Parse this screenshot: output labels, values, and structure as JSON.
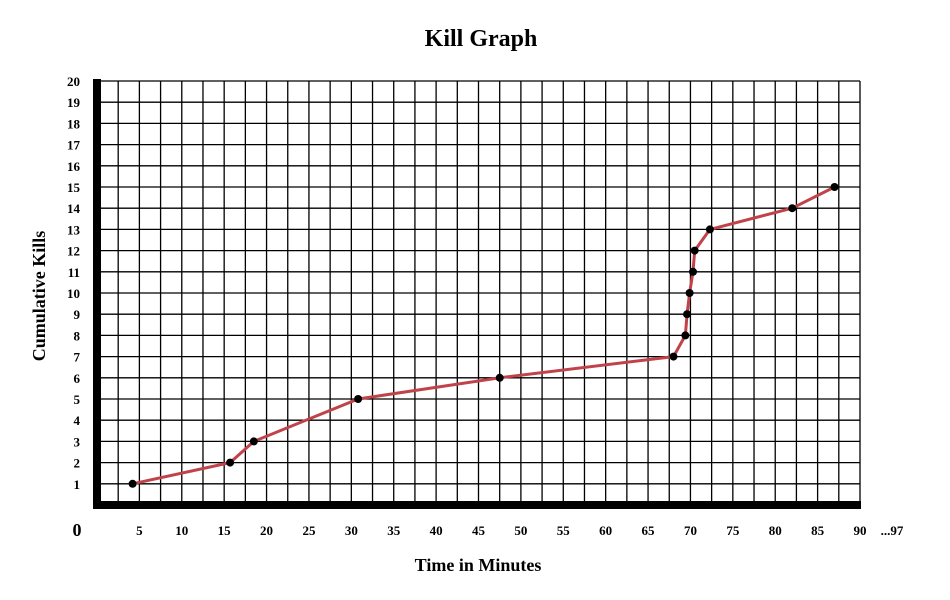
{
  "chart_data": {
    "type": "line",
    "title": "Kill Graph",
    "xlabel": "Time in Minutes",
    "ylabel": "Cumulative Kills",
    "origin_label": "0",
    "x_end_label": "...97",
    "xlim": [
      0,
      90
    ],
    "ylim": [
      0,
      20
    ],
    "x_ticks": [
      5,
      10,
      15,
      20,
      25,
      30,
      35,
      40,
      45,
      50,
      55,
      60,
      65,
      70,
      75,
      80,
      85,
      90
    ],
    "x_tick_labels": [
      "5",
      "10",
      "15",
      "20",
      "25",
      "30",
      "35",
      "40",
      "45",
      "50",
      "55",
      "60",
      "65",
      "70",
      "75",
      "80",
      "85",
      "90"
    ],
    "y_ticks": [
      1,
      2,
      3,
      4,
      5,
      6,
      7,
      8,
      9,
      10,
      11,
      12,
      13,
      14,
      15,
      16,
      17,
      18,
      19,
      20
    ],
    "y_tick_labels": [
      "1",
      "2",
      "3",
      "4",
      "5",
      "6",
      "7",
      "8",
      "9",
      "10",
      "11",
      "12",
      "13",
      "14",
      "15",
      "16",
      "17",
      "18",
      "19",
      "20"
    ],
    "grid": true,
    "series": [
      {
        "x": [
          4.2,
          15.7,
          18.5,
          30.8,
          47.5,
          68.0,
          69.4,
          69.6,
          69.9,
          70.3,
          70.5,
          72.3,
          82.0,
          87.0
        ],
        "y": [
          1,
          2,
          3,
          5,
          6,
          7,
          8,
          9,
          10,
          11,
          12,
          13,
          14,
          15
        ]
      }
    ],
    "colors": {
      "line": "#c0434a",
      "marker": "#000000",
      "grid": "#000000",
      "axis": "#000000"
    }
  }
}
